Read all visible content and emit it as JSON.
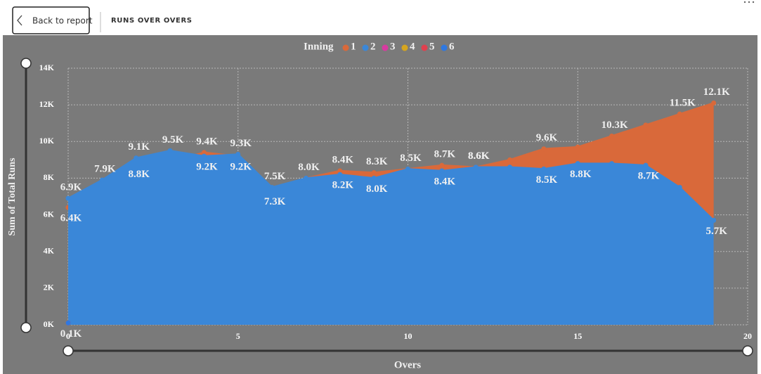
{
  "header": {
    "back_button": "Back to report",
    "page_title": "RUNS OVER OVERS"
  },
  "chart_data": {
    "type": "area",
    "y_label": "Sum of Total Runs",
    "x_label": "Overs",
    "legend_title": "Inning",
    "legend": "top",
    "grid": true,
    "x": [
      0,
      1,
      2,
      3,
      4,
      5,
      6,
      7,
      8,
      9,
      10,
      11,
      12,
      13,
      14,
      15,
      16,
      17,
      18,
      19
    ],
    "xlim": [
      0,
      20
    ],
    "xticks": [
      0,
      5,
      10,
      15,
      20
    ],
    "ylim": [
      0,
      14
    ],
    "yticks": [
      {
        "value": 0,
        "label": "0K"
      },
      {
        "value": 2,
        "label": "2K"
      },
      {
        "value": 4,
        "label": "4K"
      },
      {
        "value": 6,
        "label": "6K"
      },
      {
        "value": 8,
        "label": "8K"
      },
      {
        "value": 10,
        "label": "10K"
      },
      {
        "value": 12,
        "label": "12K"
      },
      {
        "value": 14,
        "label": "14K"
      }
    ],
    "series": [
      {
        "name": "1",
        "color": "#d9693a",
        "values": [
          6.4,
          7.9,
          8.8,
          8.9,
          9.4,
          9.2,
          7.3,
          8.0,
          8.4,
          8.3,
          8.5,
          8.7,
          8.6,
          9.0,
          9.6,
          9.7,
          10.3,
          10.9,
          11.5,
          12.1
        ],
        "value_labels": [
          "6.4K",
          "7.9K",
          "8.8K",
          null,
          "9.4K",
          "9.2K",
          "7.3K",
          "8.0K",
          "8.4K",
          "8.3K",
          "8.5K",
          "8.7K",
          "8.6K",
          null,
          "9.6K",
          null,
          "10.3K",
          null,
          "11.5K",
          "12.1K"
        ]
      },
      {
        "name": "2",
        "color": "#3a87d8",
        "values": [
          6.9,
          7.9,
          9.1,
          9.5,
          9.2,
          9.3,
          7.5,
          8.0,
          8.2,
          8.0,
          8.5,
          8.4,
          8.6,
          8.6,
          8.5,
          8.8,
          8.8,
          8.7,
          7.5,
          5.7
        ],
        "value_labels": [
          "6.9K",
          null,
          "9.1K",
          "9.5K",
          "9.2K",
          "9.3K",
          "7.5K",
          null,
          "8.2K",
          "8.0K",
          null,
          "8.4K",
          "8.6K",
          null,
          "8.5K",
          "8.8K",
          null,
          "8.7K",
          null,
          "5.7K"
        ]
      },
      {
        "name": "3",
        "color": "#d83aa0",
        "values": [
          0.1,
          null,
          null,
          null,
          null,
          null,
          null,
          null,
          null,
          null,
          null,
          null,
          null,
          null,
          null,
          null,
          null,
          null,
          null,
          null
        ]
      },
      {
        "name": "4",
        "color": "#d6a51e",
        "values": [
          0.1,
          null,
          null,
          null,
          null,
          null,
          null,
          null,
          null,
          null,
          null,
          null,
          null,
          null,
          null,
          null,
          null,
          null,
          null,
          null
        ],
        "value_labels": [
          "0.1K",
          null,
          null,
          null,
          null,
          null,
          null,
          null,
          null,
          null,
          null,
          null,
          null,
          null,
          null,
          null,
          null,
          null,
          null,
          null
        ]
      },
      {
        "name": "5",
        "color": "#e0404e",
        "values": [
          0.1,
          null,
          null,
          null,
          null,
          null,
          null,
          null,
          null,
          null,
          null,
          null,
          null,
          null,
          null,
          null,
          null,
          null,
          null,
          null
        ]
      },
      {
        "name": "6",
        "color": "#2f78e0",
        "values": [
          0.1,
          null,
          null,
          null,
          null,
          null,
          null,
          null,
          null,
          null,
          null,
          null,
          null,
          null,
          null,
          null,
          null,
          null,
          null,
          null
        ]
      }
    ]
  }
}
